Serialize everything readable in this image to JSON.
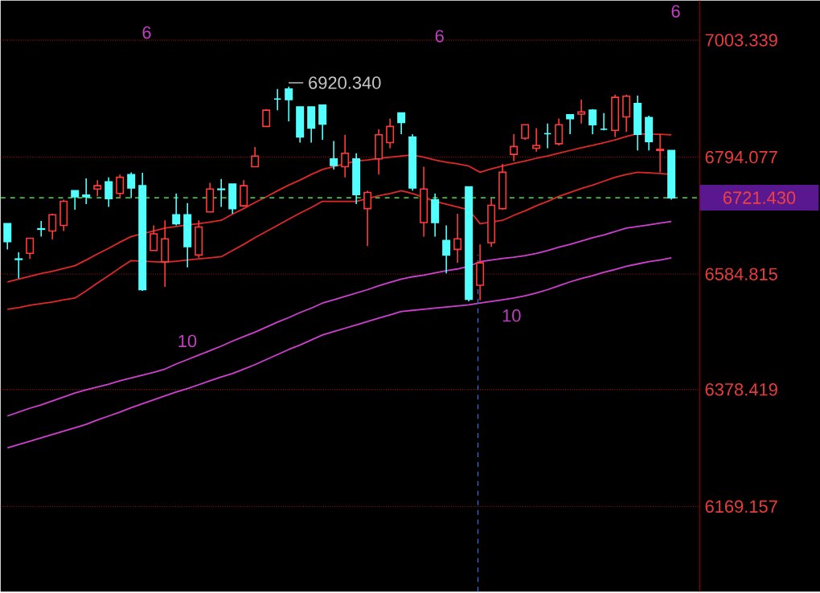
{
  "chart_data": {
    "type": "candlestick",
    "categories": [
      null,
      null,
      null,
      null,
      null,
      null,
      null,
      null,
      null,
      null,
      null,
      null,
      null,
      null,
      null,
      null,
      null,
      null,
      null,
      null,
      null,
      null,
      null,
      null,
      null,
      null,
      null,
      null,
      null,
      null,
      null,
      null,
      null,
      null,
      null,
      null,
      null,
      null,
      null,
      null,
      null,
      null,
      null,
      null,
      null,
      null,
      null,
      null,
      null,
      null,
      null,
      null,
      null,
      null,
      null,
      null,
      null,
      null,
      null,
      null
    ],
    "ohlc": [
      [
        6675,
        6675,
        6629,
        6643
      ],
      [
        6612,
        6624,
        6577,
        6611
      ],
      [
        6622,
        6649,
        6612,
        6649
      ],
      [
        6666,
        6680,
        6652,
        6665
      ],
      [
        6662,
        6693,
        6647,
        6691
      ],
      [
        6672,
        6718,
        6662,
        6715
      ],
      [
        6734,
        6734,
        6700,
        6723
      ],
      [
        6726,
        6756,
        6710,
        6723
      ],
      [
        6737,
        6753,
        6724,
        6743
      ],
      [
        6750,
        6758,
        6705,
        6720
      ],
      [
        6729,
        6763,
        6721,
        6758
      ],
      [
        6763,
        6767,
        6721,
        6739
      ],
      [
        6743,
        6766,
        6555,
        6557
      ],
      [
        6627,
        6672,
        6627,
        6657
      ],
      [
        6607,
        6681,
        6562,
        6648
      ],
      [
        6691,
        6729,
        6672,
        6675
      ],
      [
        6691,
        6712,
        6597,
        6634
      ],
      [
        6619,
        6681,
        6614,
        6669
      ],
      [
        6696,
        6748,
        6696,
        6737
      ],
      [
        6737,
        6755,
        6705,
        6736
      ],
      [
        6746,
        6746,
        6693,
        6702
      ],
      [
        6707,
        6753,
        6705,
        6743
      ],
      [
        6777,
        6812,
        6777,
        6796
      ],
      [
        6849,
        6880,
        6849,
        6878
      ],
      [
        6898,
        6916,
        6878,
        6898
      ],
      [
        6916,
        6920.34,
        6858,
        6897
      ],
      [
        6884,
        6884,
        6820,
        6830
      ],
      [
        6884,
        6884,
        6820,
        6846
      ],
      [
        6887,
        6887,
        6825,
        6853
      ],
      [
        6791,
        6823,
        6772,
        6779
      ],
      [
        6777,
        6834,
        6758,
        6801
      ],
      [
        6791,
        6801,
        6710,
        6727
      ],
      [
        6702,
        6734,
        6635,
        6731
      ],
      [
        6791,
        6844,
        6763,
        6834
      ],
      [
        6820,
        6863,
        6810,
        6849
      ],
      [
        6873,
        6873,
        6835,
        6856
      ],
      [
        6830,
        6835,
        6734,
        6739
      ],
      [
        6677,
        6777,
        6652,
        6737
      ],
      [
        6718,
        6729,
        6652,
        6677
      ],
      [
        6645,
        6672,
        6586,
        6619
      ],
      [
        6629,
        6693,
        6605,
        6648
      ],
      [
        6741,
        6741,
        6536,
        6540
      ],
      [
        6565,
        6638,
        6538,
        6605
      ],
      [
        6641,
        6720,
        6634,
        6708
      ],
      [
        6702,
        6782,
        6700,
        6767
      ],
      [
        6799,
        6835,
        6787,
        6813
      ],
      [
        6828,
        6852,
        6825,
        6852
      ],
      [
        6810,
        6846,
        6804,
        6815
      ],
      [
        6836,
        6854,
        6810,
        6836
      ],
      [
        6818,
        6863,
        6815,
        6852
      ],
      [
        6870,
        6870,
        6835,
        6863
      ],
      [
        6871,
        6897,
        6854,
        6875
      ],
      [
        6878,
        6880,
        6835,
        6852
      ],
      [
        6844,
        6873,
        6842,
        6844
      ],
      [
        6842,
        6906,
        6830,
        6901
      ],
      [
        6866,
        6906,
        6839,
        6903
      ],
      [
        6890,
        6904,
        6806,
        6835
      ],
      [
        6865,
        6868,
        6806,
        6822
      ],
      [
        6806,
        6835,
        6767,
        6808
      ],
      [
        6806,
        6806,
        6718,
        6721.43
      ]
    ],
    "colors": [
      "#54ffff",
      "#54ffff",
      "#ff3c3c",
      "#54ffff",
      "#ff3c3c",
      "#ff3c3c",
      "#54ffff",
      "#54ffff",
      "#ff3c3c",
      "#54ffff",
      "#ff3c3c",
      "#54ffff",
      "#54ffff",
      "#ff3c3c",
      "#ff3c3c",
      "#54ffff",
      "#54ffff",
      "#ff3c3c",
      "#ff3c3c",
      "#54ffff",
      "#54ffff",
      "#ff3c3c",
      "#ff3c3c",
      "#ff3c3c",
      "#54ffff",
      "#54ffff",
      "#54ffff",
      "#54ffff",
      "#54ffff",
      "#54ffff",
      "#ff3c3c",
      "#54ffff",
      "#ff3c3c",
      "#ff3c3c",
      "#ff3c3c",
      "#54ffff",
      "#54ffff",
      "#ff3c3c",
      "#54ffff",
      "#54ffff",
      "#ff3c3c",
      "#54ffff",
      "#ff3c3c",
      "#ff3c3c",
      "#ff3c3c",
      "#ff3c3c",
      "#ff3c3c",
      "#ff3c3c",
      "#54ffff",
      "#ff3c3c",
      "#54ffff",
      "#ff3c3c",
      "#54ffff",
      "#54ffff",
      "#ff3c3c",
      "#ff3c3c",
      "#54ffff",
      "#54ffff",
      "#ff3c3c",
      "#54ffff"
    ],
    "series": [
      {
        "type": "line",
        "color": "#e02828",
        "values": [
          6571,
          6576,
          6581,
          6586,
          6590,
          6595,
          6600,
          6610,
          6621,
          6631,
          6642,
          6652,
          6657,
          6662,
          6667,
          6670,
          6673,
          6675,
          6678,
          6681,
          6692,
          6702,
          6713,
          6723,
          6734,
          6744,
          6753,
          6763,
          6772,
          6777,
          6782,
          6787,
          6789,
          6792,
          6794,
          6796,
          6798,
          6794,
          6789,
          6785,
          6782,
          6778,
          6767,
          6773,
          6778,
          6783,
          6787,
          6792,
          6796,
          6801,
          6806,
          6811,
          6815,
          6820,
          6825,
          6831,
          6836,
          6835,
          6835,
          6834
        ]
      },
      {
        "type": "line",
        "color": "#e02828",
        "values": [
          6522,
          6525,
          6529,
          6532,
          6535,
          6539,
          6542,
          6555,
          6569,
          6582,
          6596,
          6609,
          6608,
          6607,
          6606,
          6608,
          6610,
          6612,
          6614,
          6616,
          6627,
          6638,
          6650,
          6661,
          6672,
          6683,
          6694,
          6704,
          6715,
          6715,
          6715,
          6715,
          6720,
          6725,
          6729,
          6734,
          6729,
          6722,
          6715,
          6710,
          6705,
          6700,
          6675,
          6678,
          6681,
          6690,
          6698,
          6707,
          6715,
          6724,
          6731,
          6738,
          6744,
          6751,
          6758,
          6763,
          6767,
          6766,
          6765,
          6763
        ]
      },
      {
        "type": "line",
        "color": "#d040d0",
        "values": [
          6331,
          6338,
          6345,
          6351,
          6358,
          6365,
          6372,
          6378,
          6383,
          6388,
          6394,
          6399,
          6404,
          6409,
          6415,
          6424,
          6432,
          6440,
          6448,
          6456,
          6465,
          6473,
          6481,
          6490,
          6499,
          6507,
          6516,
          6524,
          6533,
          6539,
          6545,
          6551,
          6557,
          6564,
          6570,
          6576,
          6580,
          6583,
          6587,
          6591,
          6594,
          6599,
          6607,
          6610,
          6613,
          6615,
          6618,
          6622,
          6627,
          6633,
          6638,
          6644,
          6650,
          6655,
          6661,
          6667,
          6670,
          6673,
          6676,
          6679
        ]
      },
      {
        "type": "line",
        "color": "#d040d0",
        "values": [
          6274,
          6280,
          6286,
          6292,
          6298,
          6304,
          6310,
          6316,
          6324,
          6331,
          6338,
          6346,
          6353,
          6360,
          6367,
          6374,
          6380,
          6387,
          6394,
          6401,
          6407,
          6415,
          6423,
          6432,
          6441,
          6450,
          6458,
          6467,
          6476,
          6482,
          6488,
          6494,
          6500,
          6506,
          6512,
          6518,
          6520,
          6522,
          6524,
          6526,
          6528,
          6530,
          6533,
          6536,
          6539,
          6542,
          6546,
          6551,
          6557,
          6564,
          6571,
          6577,
          6582,
          6588,
          6593,
          6599,
          6603,
          6607,
          6610,
          6614
        ]
      }
    ],
    "ylim": [
      6017,
      7074
    ],
    "yticks": [
      7003.339,
      6794.077,
      6584.815,
      6378.419,
      6169.157
    ],
    "tick_labels": "y",
    "grid": "y",
    "ref_lines": [
      {
        "axis": "y",
        "value": 6721.43,
        "label": "6721.430",
        "color": "#40c040",
        "line_style": "dashed"
      }
    ],
    "annotations": [
      "6920.340",
      "6",
      "6",
      "6",
      "10",
      "10"
    ]
  }
}
